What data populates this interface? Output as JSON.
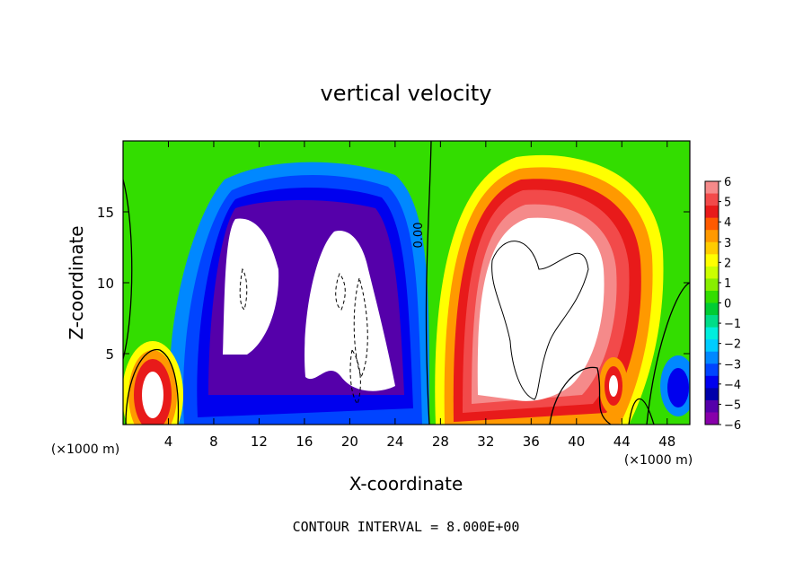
{
  "chart_data": {
    "type": "heatmap",
    "title": "vertical velocity",
    "xlabel": "X-coordinate",
    "ylabel": "Z-coordinate",
    "x_unit_label": "(×1000 m)",
    "x_unit_label_right": "(×1000 m)",
    "footer": "CONTOUR INTERVAL = 8.000E+00",
    "contour_label": "0.00",
    "xlim": [
      0,
      50
    ],
    "ylim": [
      0,
      20
    ],
    "x_ticks": [
      4,
      8,
      12,
      16,
      20,
      24,
      28,
      32,
      36,
      40,
      44,
      48
    ],
    "y_ticks": [
      5,
      10,
      15
    ],
    "colorbar": {
      "range": [
        -6,
        6
      ],
      "tick_labels": [
        "6",
        "5",
        "4",
        "3",
        "2",
        "1",
        "0",
        "−1",
        "−2",
        "−3",
        "−4",
        "−5",
        "−6"
      ],
      "colors": [
        "#f58a8a",
        "#f24a4a",
        "#e81a1a",
        "#ff5a00",
        "#ff9900",
        "#ffcc00",
        "#ffff00",
        "#ccff00",
        "#88ee00",
        "#33dd00",
        "#00cc33",
        "#00dd88",
        "#00eedd",
        "#00ccff",
        "#0088ff",
        "#0044ff",
        "#0000ee",
        "#0000aa",
        "#5500aa",
        "#8800aa"
      ]
    },
    "features": [
      {
        "kind": "updraft",
        "x_center": 36,
        "z_center": 10,
        "w_peak": 8
      },
      {
        "kind": "downdraft",
        "x_center": 18,
        "z_center": 10,
        "w_peak": -8
      },
      {
        "kind": "updraft",
        "x_center": 2.7,
        "z_center": 2,
        "w_peak": 8
      },
      {
        "kind": "updraft",
        "x_center": 43,
        "z_center": 3,
        "w_peak": 8
      }
    ]
  }
}
